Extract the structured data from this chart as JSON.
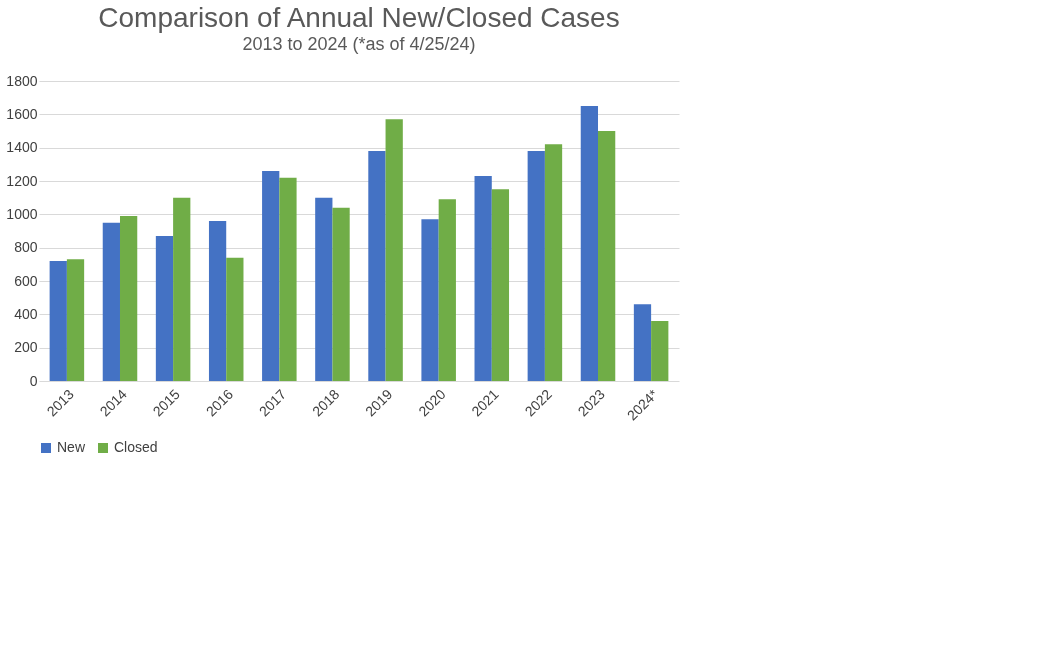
{
  "chart_data": {
    "type": "bar",
    "title": "Comparison of Annual New/Closed Cases",
    "subtitle": "2013 to 2024 (*as of 4/25/24)",
    "categories": [
      "2013",
      "2014",
      "2015",
      "2016",
      "2017",
      "2018",
      "2019",
      "2020",
      "2021",
      "2022",
      "2023",
      "2024*"
    ],
    "series": [
      {
        "name": "New",
        "color": "#4472c4",
        "values": [
          720,
          950,
          870,
          960,
          1260,
          1100,
          1380,
          970,
          1230,
          1380,
          1650,
          460
        ]
      },
      {
        "name": "Closed",
        "color": "#70ad47",
        "values": [
          730,
          990,
          1100,
          740,
          1220,
          1040,
          1570,
          1090,
          1150,
          1420,
          1500,
          360
        ]
      }
    ],
    "ylim": [
      0,
      1800
    ],
    "yticks": [
      0,
      200,
      400,
      600,
      800,
      1000,
      1200,
      1400,
      1600,
      1800
    ],
    "grid": "y",
    "legend": "bottom"
  }
}
